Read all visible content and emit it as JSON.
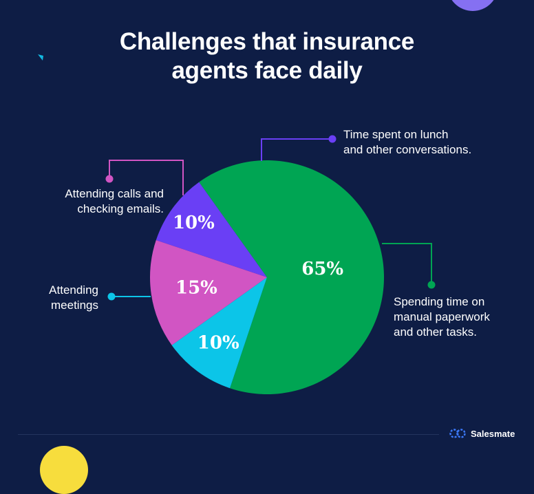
{
  "title": {
    "line1": "Challenges that insurance",
    "line2": "agents face daily"
  },
  "chart_data": {
    "type": "pie",
    "title": "Challenges that insurance agents face daily",
    "slices": [
      {
        "label": "Time spent on lunch and other conversations.",
        "value": 10,
        "value_label": "10%",
        "color": "#6a3ff5"
      },
      {
        "label": "Spending time on manual paperwork and other tasks.",
        "value": 65,
        "value_label": "65%",
        "color": "#00a553"
      },
      {
        "label": "Attending meetings",
        "value": 10,
        "value_label": "10%",
        "color": "#0cc5e8"
      },
      {
        "label": "Attending calls and checking emails.",
        "value": 15,
        "value_label": "15%",
        "color": "#d155c3"
      }
    ]
  },
  "callouts": {
    "lunch": {
      "line1": "Time spent on lunch",
      "line2": "and other conversations."
    },
    "calls": {
      "line1": "Attending calls and",
      "line2": "checking emails."
    },
    "meetings": {
      "line1": "Attending",
      "line2": "meetings"
    },
    "paperwork": {
      "line1": "Spending time on",
      "line2": "manual paperwork",
      "line3": "and other tasks."
    }
  },
  "brand": {
    "name": "Salesmate",
    "icon": "salesmate-logo-icon"
  },
  "colors": {
    "background": "#0e1d45",
    "purple_circle": "#8570f2",
    "yellow_circle": "#f7dd3d",
    "triangle": "#13b8e0"
  }
}
